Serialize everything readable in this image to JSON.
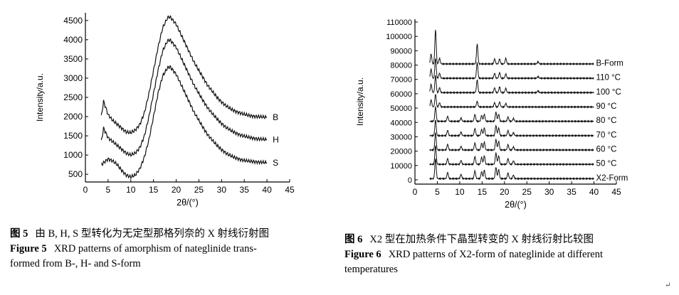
{
  "figure5": {
    "caption_cn_label": "图 5",
    "caption_cn": "由 B, H, S 型转化为无定型那格列奈的 X 射线衍射图",
    "caption_en_label": "Figure 5",
    "caption_en_line1": "XRD patterns of amorphism of nateglinide trans-",
    "caption_en_line2": "formed from B-, H- and S-form"
  },
  "figure6": {
    "caption_cn_label": "图 6",
    "caption_cn": "X2 型在加热条件下晶型转变的 X 射线衍射比较图",
    "caption_en_label": "Figure 6",
    "caption_en_line1": "XRD patterns of X2-form of nateglinide at different",
    "caption_en_line2": "temperatures"
  },
  "return_mark": "↵",
  "chart_data": [
    {
      "type": "line",
      "xlabel": "2θ/(°)",
      "ylabel": "Intensity/a.u.",
      "xlim": [
        0,
        45
      ],
      "ylim": [
        300,
        4700
      ],
      "x_ticks": [
        0,
        5,
        10,
        15,
        20,
        25,
        30,
        35,
        40,
        45
      ],
      "y_ticks": [
        500,
        1000,
        1500,
        2000,
        2500,
        3000,
        3500,
        4000,
        4500
      ],
      "grid": false,
      "series": [
        {
          "name": "B",
          "x": [
            3.5,
            4,
            5,
            6,
            7,
            8,
            9,
            10,
            11,
            12,
            13,
            14,
            15,
            16,
            17,
            18,
            18.5,
            19,
            20,
            21,
            22,
            23,
            24,
            25,
            26,
            27,
            28,
            29,
            30,
            31,
            32,
            33,
            34,
            35,
            36,
            37,
            38,
            39,
            40
          ],
          "y": [
            2000,
            2400,
            2050,
            1900,
            1800,
            1700,
            1600,
            1580,
            1650,
            1800,
            2100,
            2600,
            3200,
            3800,
            4300,
            4550,
            4600,
            4550,
            4400,
            4150,
            3900,
            3650,
            3400,
            3200,
            3000,
            2800,
            2650,
            2500,
            2380,
            2280,
            2200,
            2140,
            2100,
            2060,
            2030,
            2010,
            2000,
            1990,
            1980
          ]
        },
        {
          "name": "H",
          "x": [
            3.5,
            4,
            5,
            6,
            7,
            8,
            9,
            10,
            11,
            12,
            13,
            14,
            15,
            16,
            17,
            18,
            18.5,
            19,
            20,
            21,
            22,
            23,
            24,
            25,
            26,
            27,
            28,
            29,
            30,
            31,
            32,
            33,
            34,
            35,
            36,
            37,
            38,
            39,
            40
          ],
          "y": [
            1350,
            1700,
            1450,
            1350,
            1250,
            1150,
            1050,
            1000,
            1050,
            1200,
            1500,
            2000,
            2600,
            3200,
            3700,
            3950,
            4000,
            3950,
            3800,
            3550,
            3300,
            3050,
            2800,
            2600,
            2400,
            2220,
            2070,
            1940,
            1820,
            1720,
            1640,
            1580,
            1530,
            1490,
            1460,
            1440,
            1420,
            1410,
            1400
          ]
        },
        {
          "name": "S",
          "x": [
            3.5,
            4,
            5,
            6,
            7,
            8,
            9,
            10,
            11,
            12,
            13,
            14,
            15,
            16,
            17,
            18,
            18.5,
            19,
            20,
            21,
            22,
            23,
            24,
            25,
            26,
            27,
            28,
            29,
            30,
            31,
            32,
            33,
            34,
            35,
            36,
            37,
            38,
            39,
            40
          ],
          "y": [
            750,
            800,
            900,
            850,
            750,
            600,
            480,
            430,
            480,
            650,
            950,
            1400,
            2000,
            2600,
            3050,
            3250,
            3300,
            3250,
            3100,
            2850,
            2600,
            2350,
            2100,
            1900,
            1700,
            1520,
            1380,
            1250,
            1140,
            1050,
            980,
            930,
            890,
            860,
            840,
            830,
            820,
            810,
            800
          ]
        }
      ]
    },
    {
      "type": "line",
      "xlabel": "2θ/(°)",
      "ylabel": "Intensity/a.u.",
      "xlim": [
        0,
        45
      ],
      "ylim": [
        -3000,
        112000
      ],
      "x_ticks": [
        0,
        5,
        10,
        15,
        20,
        25,
        30,
        35,
        40,
        45
      ],
      "y_ticks": [
        0,
        10000,
        20000,
        30000,
        40000,
        50000,
        60000,
        70000,
        80000,
        90000,
        100000,
        110000
      ],
      "grid": false,
      "series": [
        {
          "name": "X2-Form",
          "offset": 0,
          "peaks": [
            [
              4.6,
              14000
            ],
            [
              7.3,
              4500
            ],
            [
              10.3,
              3000
            ],
            [
              13.4,
              5500
            ],
            [
              14.9,
              5000
            ],
            [
              15.5,
              6000
            ],
            [
              18.1,
              8000
            ],
            [
              18.7,
              6500
            ],
            [
              20.8,
              4000
            ],
            [
              22.0,
              2500
            ]
          ]
        },
        {
          "name": "50 °C",
          "offset": 10000,
          "peaks": [
            [
              4.6,
              13000
            ],
            [
              7.3,
              4000
            ],
            [
              10.3,
              2800
            ],
            [
              13.4,
              5500
            ],
            [
              14.9,
              5000
            ],
            [
              15.5,
              6000
            ],
            [
              18.1,
              8000
            ],
            [
              18.7,
              6000
            ],
            [
              20.8,
              4000
            ],
            [
              22.0,
              2500
            ]
          ]
        },
        {
          "name": "60 °C",
          "offset": 20000,
          "peaks": [
            [
              4.6,
              12000
            ],
            [
              7.3,
              4000
            ],
            [
              10.3,
              2600
            ],
            [
              13.4,
              5000
            ],
            [
              14.9,
              4800
            ],
            [
              15.5,
              5500
            ],
            [
              18.1,
              7500
            ],
            [
              18.7,
              6000
            ],
            [
              20.8,
              3800
            ],
            [
              22.0,
              2200
            ]
          ]
        },
        {
          "name": "70 °C",
          "offset": 30000,
          "peaks": [
            [
              4.6,
              11000
            ],
            [
              7.3,
              3800
            ],
            [
              10.3,
              2500
            ],
            [
              13.4,
              5000
            ],
            [
              14.9,
              4500
            ],
            [
              15.5,
              5500
            ],
            [
              18.1,
              7000
            ],
            [
              18.7,
              5500
            ],
            [
              20.8,
              3500
            ],
            [
              22.0,
              2000
            ]
          ]
        },
        {
          "name": "80 °C",
          "offset": 40000,
          "peaks": [
            [
              4.6,
              10000
            ],
            [
              7.3,
              3500
            ],
            [
              10.3,
              2300
            ],
            [
              13.4,
              4800
            ],
            [
              14.9,
              4200
            ],
            [
              15.5,
              5000
            ],
            [
              18.1,
              6500
            ],
            [
              18.7,
              5000
            ],
            [
              20.8,
              3200
            ],
            [
              22.0,
              2000
            ]
          ]
        },
        {
          "name": "90 °C",
          "offset": 50000,
          "peaks": [
            [
              3.6,
              5000
            ],
            [
              4.6,
              9000
            ],
            [
              5.5,
              3000
            ],
            [
              13.9,
              4000
            ],
            [
              17.8,
              3000
            ],
            [
              18.9,
              3500
            ],
            [
              20.3,
              2500
            ]
          ]
        },
        {
          "name": "100 °C",
          "offset": 60000,
          "peaks": [
            [
              3.6,
              6000
            ],
            [
              4.6,
              12000
            ],
            [
              5.5,
              3500
            ],
            [
              13.9,
              9000
            ],
            [
              17.8,
              3500
            ],
            [
              18.9,
              4000
            ],
            [
              20.3,
              3000
            ],
            [
              27.5,
              1200
            ]
          ]
        },
        {
          "name": "110 °C",
          "offset": 70000,
          "peaks": [
            [
              3.6,
              6500
            ],
            [
              4.6,
              14000
            ],
            [
              5.5,
              3500
            ],
            [
              13.9,
              11000
            ],
            [
              17.8,
              3500
            ],
            [
              18.9,
              4000
            ],
            [
              20.3,
              3000
            ],
            [
              27.5,
              1200
            ]
          ]
        },
        {
          "name": "B-Form",
          "offset": 80000,
          "peaks": [
            [
              3.6,
              7000
            ],
            [
              4.6,
              24000
            ],
            [
              5.5,
              4000
            ],
            [
              13.9,
              14000
            ],
            [
              17.8,
              3500
            ],
            [
              18.9,
              3500
            ],
            [
              20.3,
              4000
            ],
            [
              27.5,
              1500
            ]
          ]
        }
      ]
    }
  ]
}
